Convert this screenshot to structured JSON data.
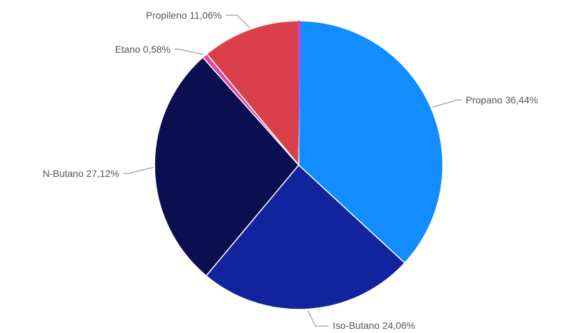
{
  "chart_data": {
    "type": "pie",
    "title": "",
    "slices": [
      {
        "name": "Propano",
        "value": 36.44,
        "label": "Propano 36,44%",
        "color": "#118DFF"
      },
      {
        "name": "Iso-Butano",
        "value": 24.06,
        "label": "Iso-Butano 24,06%",
        "color": "#12239E"
      },
      {
        "name": "N-Butano",
        "value": 27.12,
        "label": "N-Butano 27,12%",
        "color": "#0B0F4F"
      },
      {
        "name": "Etano",
        "value": 0.58,
        "label": "Etano 0,58%",
        "color": "#E044A7"
      },
      {
        "name": "Propileno",
        "value": 11.06,
        "label": "Propileno 11,06%",
        "color": "#D9404A"
      }
    ],
    "accent_marker_color": "#C04ACB",
    "legend": "none"
  }
}
